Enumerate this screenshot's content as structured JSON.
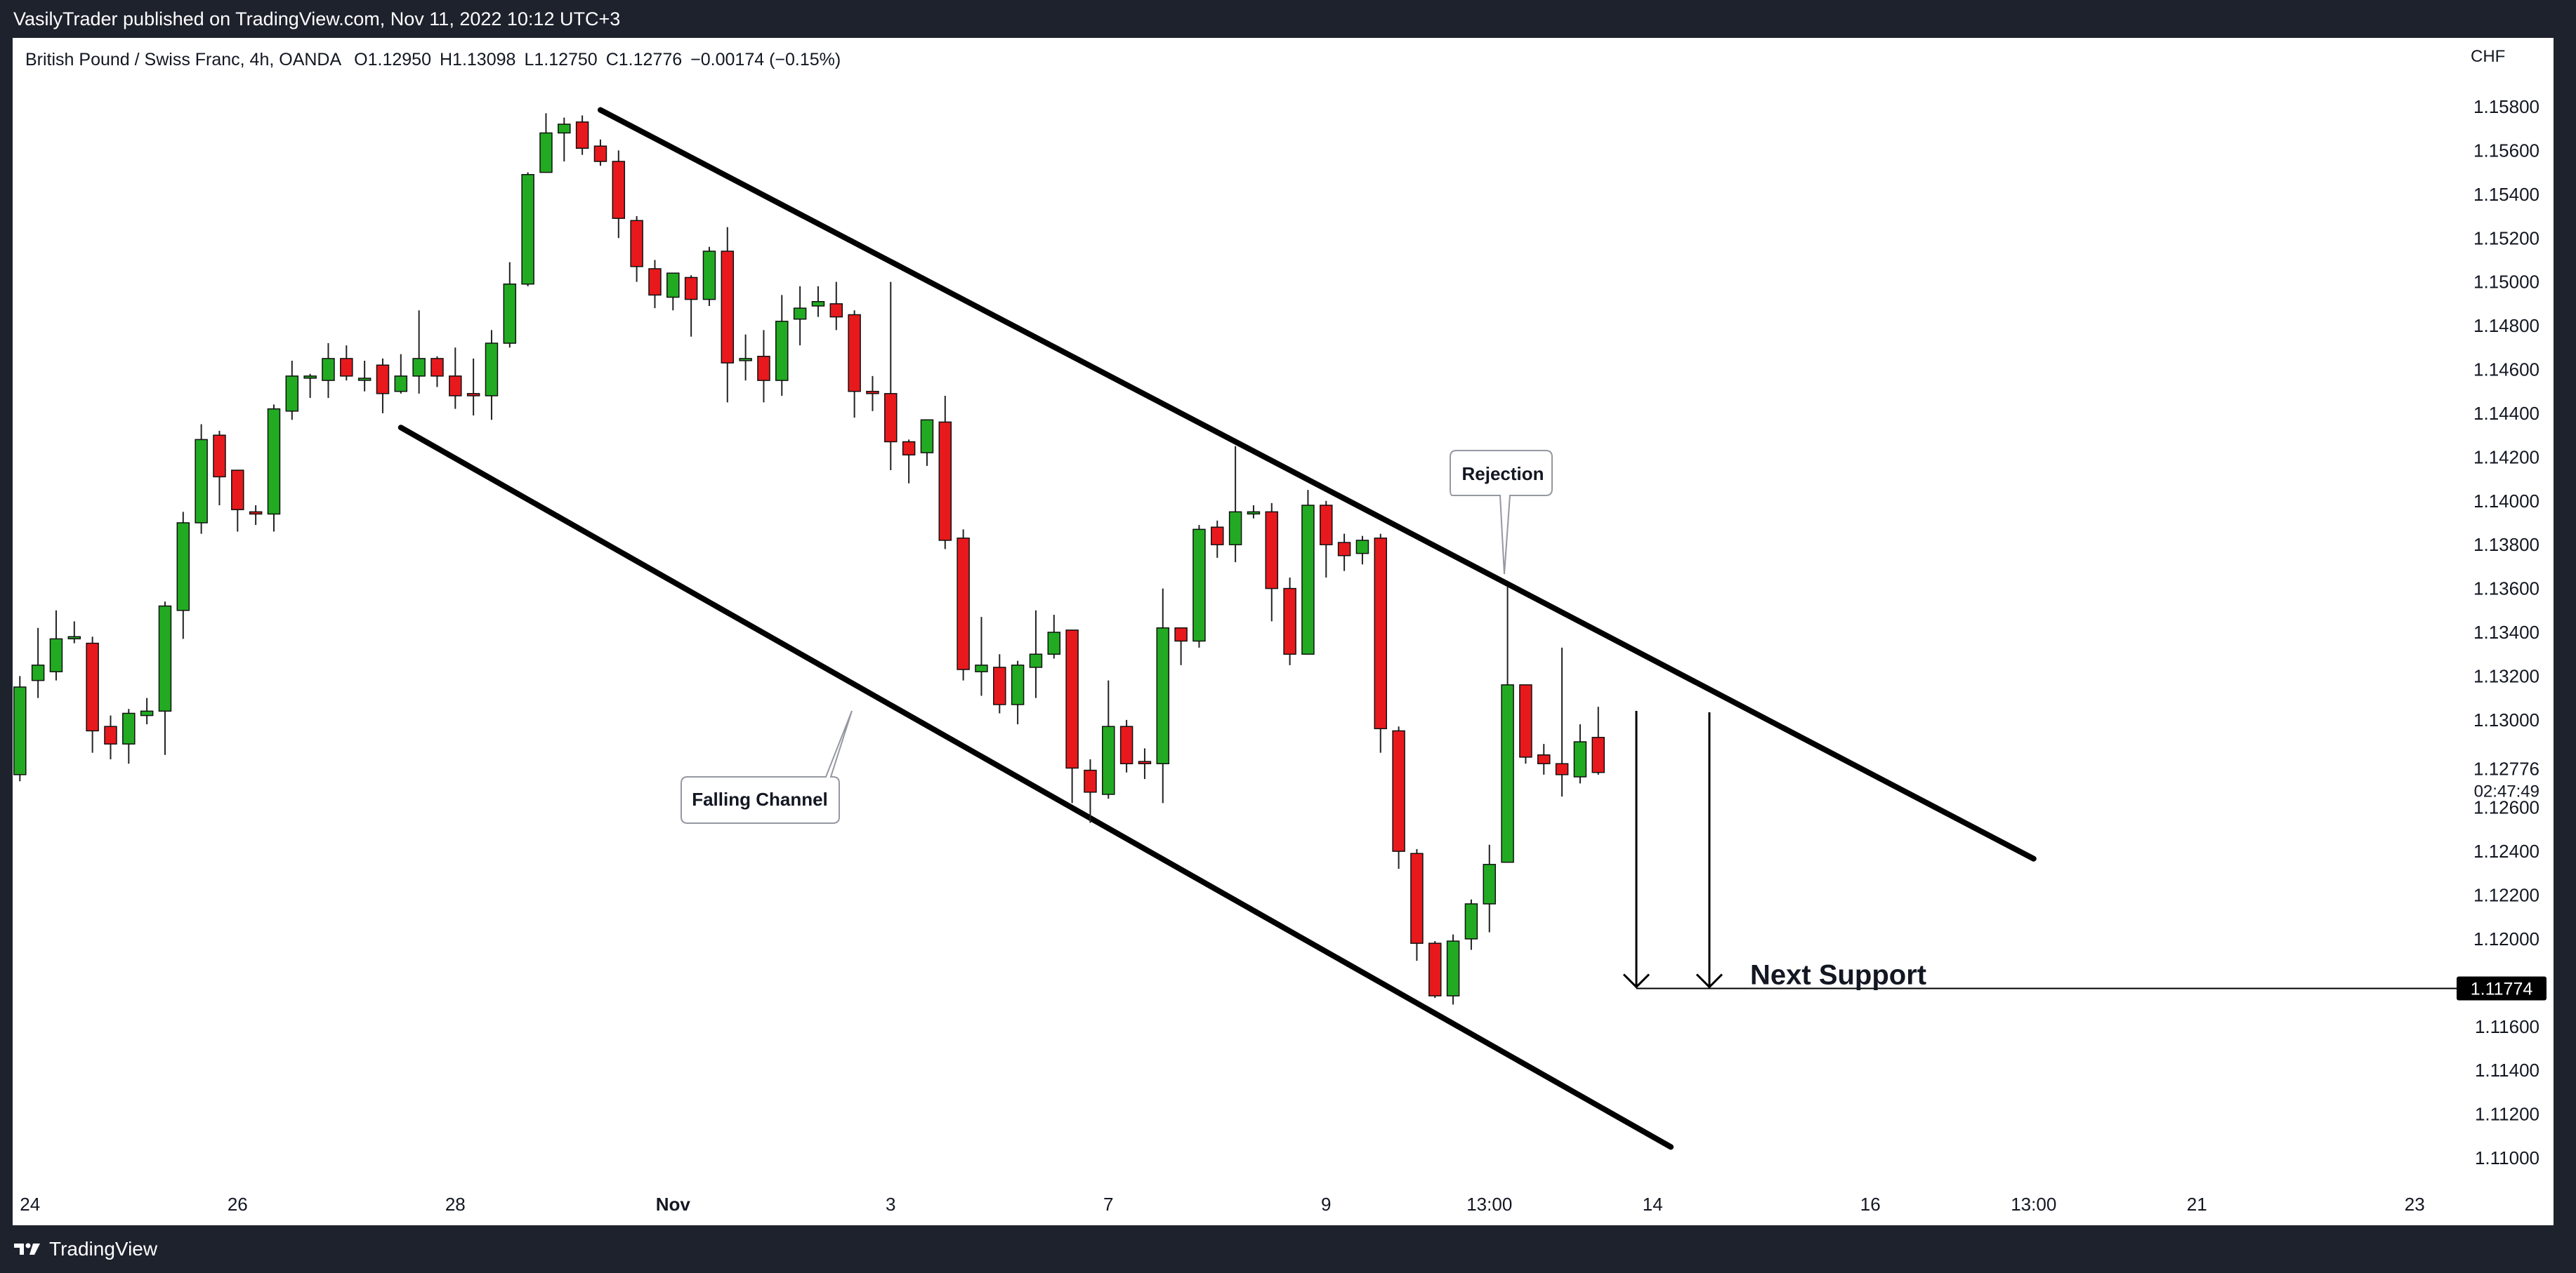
{
  "header": {
    "text": "VasilyTrader published on TradingView.com, Nov 11, 2022 10:12 UTC+3"
  },
  "footer": {
    "brand": "TradingView"
  },
  "colors": {
    "up": "#22ab22",
    "down": "#e8191c",
    "line": "#000000",
    "bg_dark": "#1e222d"
  },
  "chart_data": {
    "type": "candlestick",
    "symbol": "British Pound / Swiss Franc, 4h, OANDA",
    "ohlc_legend": {
      "o": "O1.12950",
      "h": "H1.13098",
      "l": "L1.12750",
      "c": "C1.12776",
      "chg": "−0.00174 (−0.15%)"
    },
    "currency": "CHF",
    "ylim": [
      1.1086,
      1.1597
    ],
    "y_ticks": [
      "1.15800",
      "1.15600",
      "1.15400",
      "1.15200",
      "1.15000",
      "1.14800",
      "1.14600",
      "1.14400",
      "1.14200",
      "1.14000",
      "1.13800",
      "1.13600",
      "1.13400",
      "1.13200",
      "1.13000",
      "1.12600",
      "1.12400",
      "1.12200",
      "1.12000",
      "1.11600",
      "1.11400",
      "1.11200",
      "1.11000"
    ],
    "last_price": {
      "value": "1.12776",
      "countdown": "02:47:49"
    },
    "x_ticks": [
      {
        "label": "24",
        "bar": 0
      },
      {
        "label": "26",
        "bar": 12
      },
      {
        "label": "28",
        "bar": 24
      },
      {
        "label": "Nov",
        "bar": 36
      },
      {
        "label": "3",
        "bar": 48
      },
      {
        "label": "7",
        "bar": 60
      },
      {
        "label": "9",
        "bar": 72
      },
      {
        "label": "13:00",
        "bar": 81
      },
      {
        "label": "14",
        "bar": 90
      },
      {
        "label": "16",
        "bar": 102
      },
      {
        "label": "13:00",
        "bar": 111
      },
      {
        "label": "21",
        "bar": 120
      },
      {
        "label": "23",
        "bar": 132
      }
    ],
    "candles": [
      [
        1.1275,
        1.1315,
        1.1272,
        1.132
      ],
      [
        1.1318,
        1.1325,
        1.131,
        1.1342
      ],
      [
        1.1322,
        1.1337,
        1.1318,
        1.135
      ],
      [
        1.1338,
        1.1338,
        1.1335,
        1.1345
      ],
      [
        1.1335,
        1.1295,
        1.1285,
        1.1338
      ],
      [
        1.1297,
        1.1289,
        1.1282,
        1.1302
      ],
      [
        1.1289,
        1.1303,
        1.128,
        1.1305
      ],
      [
        1.1302,
        1.1304,
        1.1298,
        1.131
      ],
      [
        1.1304,
        1.1352,
        1.1284,
        1.1354
      ],
      [
        1.135,
        1.139,
        1.1337,
        1.1395
      ],
      [
        1.139,
        1.1428,
        1.1385,
        1.1435
      ],
      [
        1.143,
        1.1411,
        1.1398,
        1.1432
      ],
      [
        1.1414,
        1.1396,
        1.1386,
        1.1414
      ],
      [
        1.1395,
        1.1394,
        1.1389,
        1.1398
      ],
      [
        1.1394,
        1.1442,
        1.1386,
        1.1444
      ],
      [
        1.1441,
        1.1457,
        1.1437,
        1.1464
      ],
      [
        1.1457,
        1.1457,
        1.1447,
        1.1458
      ],
      [
        1.1455,
        1.1465,
        1.1447,
        1.1472
      ],
      [
        1.1465,
        1.1457,
        1.1455,
        1.1471
      ],
      [
        1.1456,
        1.1456,
        1.145,
        1.1464
      ],
      [
        1.1462,
        1.1449,
        1.144,
        1.1465
      ],
      [
        1.145,
        1.1457,
        1.1449,
        1.1467
      ],
      [
        1.1457,
        1.1465,
        1.1449,
        1.1487
      ],
      [
        1.1465,
        1.1457,
        1.1452,
        1.1466
      ],
      [
        1.1457,
        1.1448,
        1.1442,
        1.147
      ],
      [
        1.1449,
        1.1448,
        1.1439,
        1.1465
      ],
      [
        1.1448,
        1.1472,
        1.1437,
        1.1478
      ],
      [
        1.1472,
        1.1499,
        1.147,
        1.1509
      ],
      [
        1.1499,
        1.1549,
        1.1498,
        1.155
      ],
      [
        1.155,
        1.1568,
        1.155,
        1.1577
      ],
      [
        1.1568,
        1.1572,
        1.1555,
        1.1575
      ],
      [
        1.1573,
        1.1561,
        1.1558,
        1.1576
      ],
      [
        1.1562,
        1.1555,
        1.1553,
        1.1565
      ],
      [
        1.1555,
        1.1529,
        1.152,
        1.156
      ],
      [
        1.1528,
        1.1507,
        1.15,
        1.153
      ],
      [
        1.1506,
        1.1494,
        1.1488,
        1.151
      ],
      [
        1.1493,
        1.1504,
        1.1487,
        1.1503
      ],
      [
        1.1502,
        1.1492,
        1.1475,
        1.1503
      ],
      [
        1.1492,
        1.1514,
        1.1489,
        1.1516
      ],
      [
        1.1514,
        1.1463,
        1.1445,
        1.1525
      ],
      [
        1.1465,
        1.1465,
        1.1455,
        1.1476
      ],
      [
        1.1466,
        1.1455,
        1.1445,
        1.1478
      ],
      [
        1.1455,
        1.1482,
        1.1448,
        1.1494
      ],
      [
        1.1483,
        1.1488,
        1.1471,
        1.1498
      ],
      [
        1.1489,
        1.1491,
        1.1484,
        1.1498
      ],
      [
        1.149,
        1.1484,
        1.1478,
        1.15
      ],
      [
        1.1485,
        1.145,
        1.1438,
        1.1487
      ],
      [
        1.145,
        1.1449,
        1.1441,
        1.1457
      ],
      [
        1.1449,
        1.1427,
        1.1414,
        1.15
      ],
      [
        1.1427,
        1.1421,
        1.1408,
        1.1428
      ],
      [
        1.1422,
        1.1437,
        1.1416,
        1.1437
      ],
      [
        1.1436,
        1.1382,
        1.1378,
        1.1448
      ],
      [
        1.1383,
        1.1323,
        1.1318,
        1.1387
      ],
      [
        1.1322,
        1.1325,
        1.1311,
        1.1347
      ],
      [
        1.1324,
        1.1307,
        1.1303,
        1.133
      ],
      [
        1.1307,
        1.1325,
        1.1298,
        1.1327
      ],
      [
        1.1324,
        1.133,
        1.131,
        1.135
      ],
      [
        1.133,
        1.134,
        1.1328,
        1.1348
      ],
      [
        1.1341,
        1.1278,
        1.1262,
        1.1341
      ],
      [
        1.1277,
        1.1267,
        1.1253,
        1.1282
      ],
      [
        1.1266,
        1.1297,
        1.1264,
        1.1318
      ],
      [
        1.1297,
        1.128,
        1.1276,
        1.13
      ],
      [
        1.1281,
        1.128,
        1.1273,
        1.1287
      ],
      [
        1.128,
        1.1342,
        1.1262,
        1.136
      ],
      [
        1.1342,
        1.1336,
        1.1325,
        1.1342
      ],
      [
        1.1336,
        1.1387,
        1.1333,
        1.1389
      ],
      [
        1.1388,
        1.138,
        1.1374,
        1.1391
      ],
      [
        1.138,
        1.1395,
        1.1372,
        1.1425
      ],
      [
        1.1395,
        1.1395,
        1.1392,
        1.1398
      ],
      [
        1.1395,
        1.136,
        1.1345,
        1.1399
      ],
      [
        1.136,
        1.133,
        1.1325,
        1.1365
      ],
      [
        1.133,
        1.1398,
        1.133,
        1.1405
      ],
      [
        1.1398,
        1.138,
        1.1365,
        1.14
      ],
      [
        1.1381,
        1.1375,
        1.1368,
        1.1385
      ],
      [
        1.1376,
        1.1382,
        1.1371,
        1.1384
      ],
      [
        1.1383,
        1.1296,
        1.1285,
        1.1385
      ],
      [
        1.1295,
        1.124,
        1.1232,
        1.1297
      ],
      [
        1.1239,
        1.1198,
        1.119,
        1.1241
      ],
      [
        1.1198,
        1.1174,
        1.1173,
        1.1199
      ],
      [
        1.1174,
        1.1199,
        1.117,
        1.1202
      ],
      [
        1.12,
        1.1216,
        1.1195,
        1.1218
      ],
      [
        1.1216,
        1.1234,
        1.1203,
        1.1243
      ],
      [
        1.1235,
        1.1316,
        1.1235,
        1.1361
      ],
      [
        1.1316,
        1.1283,
        1.128,
        1.1316
      ],
      [
        1.1284,
        1.128,
        1.1275,
        1.1289
      ],
      [
        1.128,
        1.1275,
        1.1265,
        1.1333
      ],
      [
        1.1274,
        1.129,
        1.1271,
        1.1298
      ],
      [
        1.1292,
        1.1276,
        1.1275,
        1.1306
      ]
    ],
    "trendlines": [
      {
        "from": {
          "bar": 32,
          "price": 1.15785
        },
        "to": {
          "bar": 111,
          "price": 1.12366
        }
      },
      {
        "from": {
          "bar": 21,
          "price": 1.14335
        },
        "to": {
          "bar": 91,
          "price": 1.1105
        }
      }
    ],
    "support": {
      "label": "Next Support",
      "value": "1.11774"
    },
    "annotations": [
      "Rejection",
      "Falling Channel"
    ]
  }
}
